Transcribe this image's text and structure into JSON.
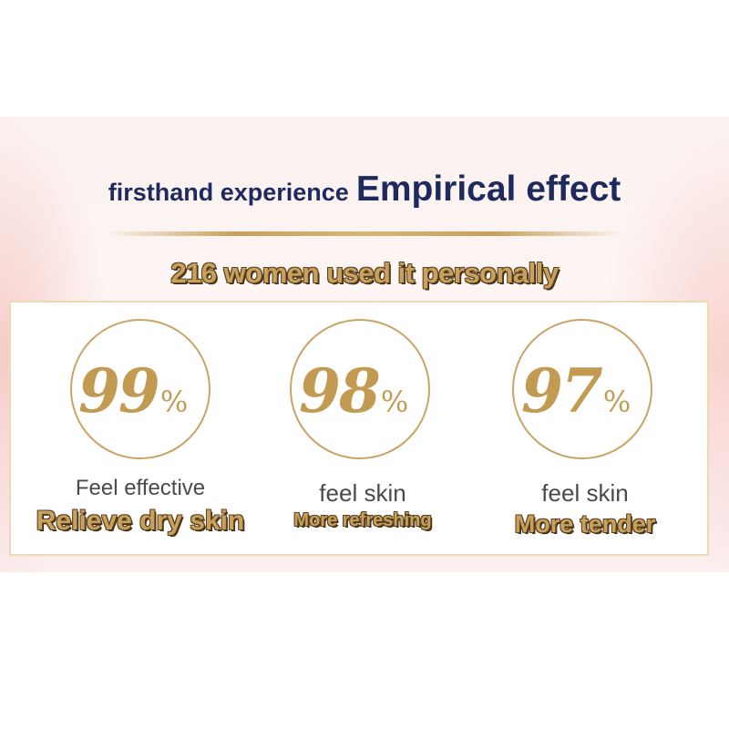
{
  "header": {
    "lead": "firsthand experience",
    "title": "Empirical effect"
  },
  "subheadline": "216 women used it personally",
  "stats": [
    {
      "value": "99",
      "unit": "%",
      "line1": "Feel effective",
      "line2": "Relieve dry skin"
    },
    {
      "value": "98",
      "unit": "%",
      "line1": "feel skin",
      "line2": "More refreshing"
    },
    {
      "value": "97",
      "unit": "%",
      "line1": "feel skin",
      "line2": "More tender"
    }
  ],
  "colors": {
    "navy": "#1d2a5e",
    "gold": "#c9a15c",
    "text_gray": "#4a4a4a"
  }
}
